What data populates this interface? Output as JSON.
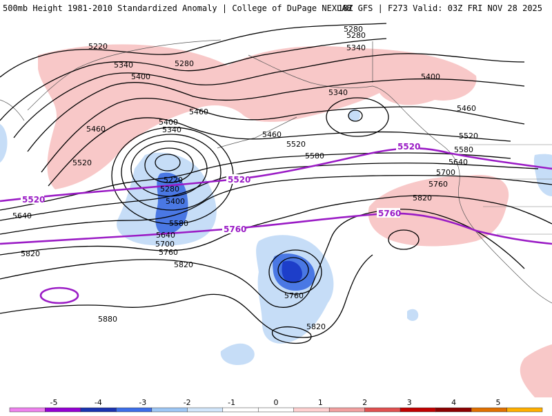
{
  "header": {
    "title": "500mb Height 1981-2010 Standardized Anomaly | College of DuPage NEXLAB",
    "run_info": "18Z GFS | F273 Valid: 03Z FRI NOV 28 2025"
  },
  "colorbar": {
    "ticks": [
      "-5",
      "-4",
      "-3",
      "-2",
      "-1",
      "0",
      "1",
      "2",
      "3",
      "4",
      "5"
    ],
    "colors": [
      "#ee82ee",
      "#9400d3",
      "#1a33b0",
      "#3d6ee8",
      "#9ec7f5",
      "#d2e6fb",
      "#ffffff",
      "#ffffff",
      "#ffd1d1",
      "#f2a0a0",
      "#e05050",
      "#c00000",
      "#8b0000",
      "#e07000",
      "#ffb000"
    ]
  },
  "contours": {
    "height_labels": [
      "5220",
      "5340",
      "5400",
      "5460",
      "5520",
      "5580",
      "5640",
      "5700",
      "5760",
      "5820",
      "5880",
      "5280"
    ],
    "thick_labels": [
      "5520",
      "5760"
    ]
  },
  "colors": {
    "positive_anomaly": "#f8c8c8",
    "negative_light": "#c6ddf7",
    "negative_mid": "#4a78e4",
    "negative_dark": "#1d3ec9",
    "thick_contour": "#9a1bc5"
  }
}
